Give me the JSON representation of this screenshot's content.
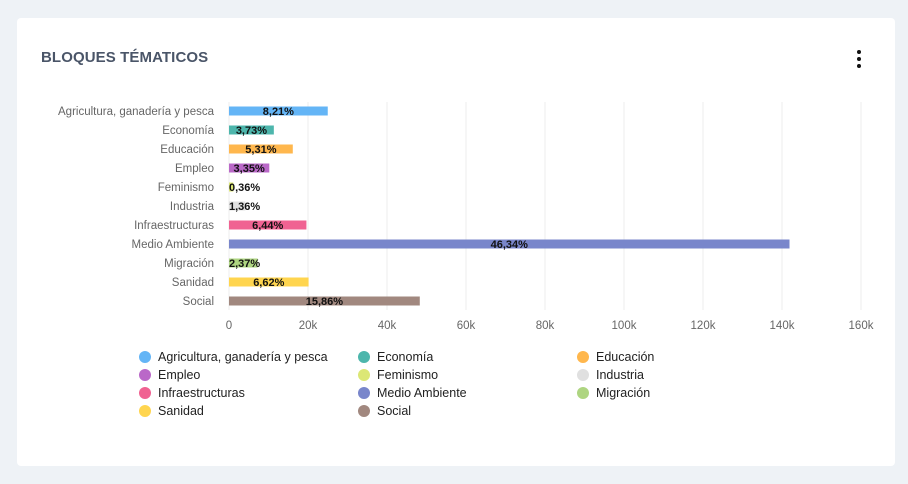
{
  "header": {
    "title": "BLOQUES TÉMATICOS",
    "menu_icon": "more-vertical-icon"
  },
  "chart_data": {
    "type": "bar",
    "orientation": "horizontal",
    "categories": [
      "Agricultura, ganadería y pesca",
      "Economía",
      "Educación",
      "Empleo",
      "Feminismo",
      "Industria",
      "Infraestructuras",
      "Medio Ambiente",
      "Migración",
      "Sanidad",
      "Social"
    ],
    "values": [
      25000,
      11350,
      16150,
      10200,
      1100,
      4150,
      19600,
      141900,
      7250,
      20150,
      48300
    ],
    "data_labels": [
      "8,21%",
      "3,73%",
      "5,31%",
      "3,35%",
      "0,36%",
      "1,36%",
      "6,44%",
      "46,34%",
      "2,37%",
      "6,62%",
      "15,86%"
    ],
    "colors": [
      "#64b5f6",
      "#4db6ac",
      "#ffb74d",
      "#ba68c8",
      "#dce775",
      "#e0e0e0",
      "#f06292",
      "#7986cb",
      "#aed581",
      "#ffd54f",
      "#a1887f"
    ],
    "x_ticks": [
      "0",
      "20k",
      "40k",
      "60k",
      "80k",
      "100k",
      "120k",
      "140k",
      "160k"
    ],
    "xlim": [
      0,
      160000
    ],
    "grid": true,
    "legend_position": "bottom"
  },
  "legend": [
    {
      "label": "Agricultura, ganadería y pesca",
      "color": "#64b5f6"
    },
    {
      "label": "Economía",
      "color": "#4db6ac"
    },
    {
      "label": "Educación",
      "color": "#ffb74d"
    },
    {
      "label": "Empleo",
      "color": "#ba68c8"
    },
    {
      "label": "Feminismo",
      "color": "#dce775"
    },
    {
      "label": "Industria",
      "color": "#e0e0e0"
    },
    {
      "label": "Infraestructuras",
      "color": "#f06292"
    },
    {
      "label": "Medio Ambiente",
      "color": "#7986cb"
    },
    {
      "label": "Migración",
      "color": "#aed581"
    },
    {
      "label": "Sanidad",
      "color": "#ffd54f"
    },
    {
      "label": "Social",
      "color": "#a1887f"
    }
  ]
}
